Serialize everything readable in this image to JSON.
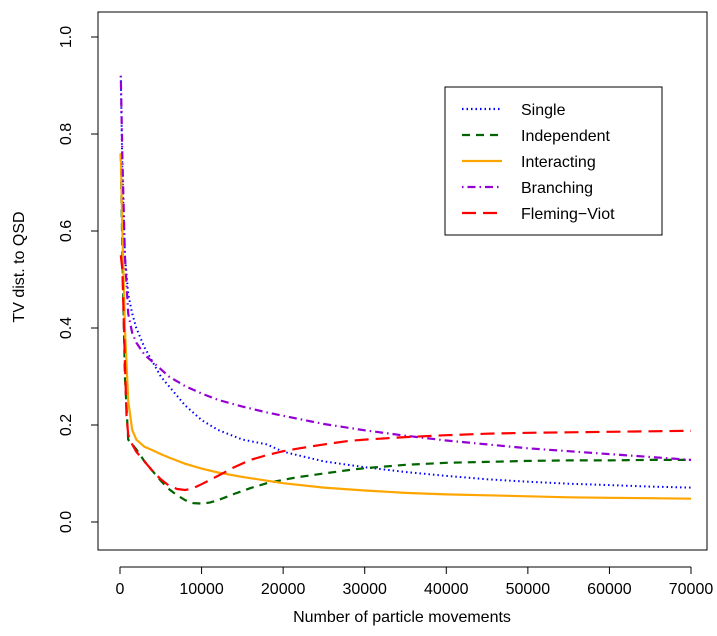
{
  "chart_data": {
    "type": "line",
    "title": "",
    "xlabel": "Number of particle movements",
    "ylabel": "TV dist. to QSD",
    "xlim": [
      0,
      70000
    ],
    "ylim": [
      0,
      1.0
    ],
    "grid": false,
    "legend_position": "top-right",
    "xticks": [
      0,
      10000,
      20000,
      30000,
      40000,
      50000,
      60000,
      70000
    ],
    "xtick_labels": [
      "0",
      "10000",
      "20000",
      "30000",
      "40000",
      "50000",
      "60000",
      "70000"
    ],
    "yticks": [
      0.0,
      0.2,
      0.4,
      0.6,
      0.8,
      1.0
    ],
    "ytick_labels": [
      "0.0",
      "0.2",
      "0.4",
      "0.6",
      "0.8",
      "1.0"
    ],
    "series": [
      {
        "name": "Single",
        "color": "#0000ff",
        "dash": "dotted",
        "x": [
          100,
          300,
          600,
          1000,
          1500,
          2000,
          3000,
          4000,
          5000,
          6000,
          7000,
          8000,
          10000,
          12000,
          15000,
          18000,
          20000,
          25000,
          30000,
          35000,
          40000,
          45000,
          50000,
          55000,
          60000,
          65000,
          70000
        ],
        "y": [
          0.92,
          0.72,
          0.55,
          0.47,
          0.43,
          0.4,
          0.36,
          0.33,
          0.3,
          0.28,
          0.26,
          0.24,
          0.21,
          0.19,
          0.17,
          0.16,
          0.145,
          0.125,
          0.113,
          0.103,
          0.095,
          0.088,
          0.083,
          0.079,
          0.076,
          0.073,
          0.071
        ]
      },
      {
        "name": "Independent",
        "color": "#006400",
        "dash": "dashed",
        "x": [
          100,
          300,
          600,
          1000,
          1500,
          2000,
          3000,
          4000,
          5000,
          6000,
          7000,
          8000,
          9000,
          10000,
          11000,
          12000,
          14000,
          16000,
          18000,
          20000,
          22000,
          25000,
          28000,
          30000,
          35000,
          40000,
          45000,
          50000,
          55000,
          60000,
          65000,
          70000
        ],
        "y": [
          0.76,
          0.55,
          0.3,
          0.17,
          0.16,
          0.15,
          0.125,
          0.105,
          0.085,
          0.068,
          0.055,
          0.045,
          0.039,
          0.038,
          0.04,
          0.045,
          0.058,
          0.07,
          0.08,
          0.087,
          0.093,
          0.1,
          0.107,
          0.111,
          0.118,
          0.122,
          0.124,
          0.126,
          0.127,
          0.127,
          0.128,
          0.128
        ]
      },
      {
        "name": "Interacting",
        "color": "#ffa500",
        "dash": "solid",
        "x": [
          100,
          300,
          600,
          1000,
          1500,
          2000,
          3000,
          4000,
          5000,
          6000,
          8000,
          10000,
          12000,
          15000,
          20000,
          25000,
          30000,
          35000,
          40000,
          45000,
          50000,
          55000,
          60000,
          65000,
          70000
        ],
        "y": [
          0.76,
          0.6,
          0.4,
          0.25,
          0.19,
          0.17,
          0.155,
          0.148,
          0.14,
          0.133,
          0.12,
          0.11,
          0.102,
          0.093,
          0.08,
          0.071,
          0.065,
          0.06,
          0.057,
          0.055,
          0.053,
          0.051,
          0.05,
          0.049,
          0.048
        ]
      },
      {
        "name": "Branching",
        "color": "#9400d3",
        "dash": "dotdash",
        "x": [
          100,
          300,
          600,
          1000,
          1500,
          2000,
          3000,
          4000,
          5000,
          6000,
          8000,
          10000,
          12000,
          15000,
          18000,
          20000,
          25000,
          30000,
          35000,
          40000,
          45000,
          50000,
          55000,
          60000,
          65000,
          70000
        ],
        "y": [
          0.92,
          0.75,
          0.55,
          0.43,
          0.39,
          0.37,
          0.345,
          0.33,
          0.315,
          0.3,
          0.28,
          0.265,
          0.252,
          0.238,
          0.226,
          0.219,
          0.202,
          0.189,
          0.178,
          0.168,
          0.16,
          0.152,
          0.146,
          0.14,
          0.134,
          0.128
        ]
      },
      {
        "name": "Fleming−Viot",
        "color": "#ff0000",
        "dash": "longdash",
        "x": [
          100,
          300,
          600,
          800,
          1000,
          1500,
          2000,
          3000,
          4000,
          5000,
          6000,
          7000,
          8000,
          9000,
          10000,
          12000,
          14000,
          16000,
          18000,
          20000,
          22000,
          25000,
          28000,
          30000,
          35000,
          40000,
          45000,
          50000,
          55000,
          60000,
          65000,
          70000
        ],
        "y": [
          0.55,
          0.52,
          0.33,
          0.22,
          0.18,
          0.16,
          0.145,
          0.125,
          0.105,
          0.088,
          0.075,
          0.068,
          0.066,
          0.07,
          0.078,
          0.095,
          0.113,
          0.128,
          0.138,
          0.146,
          0.152,
          0.16,
          0.167,
          0.17,
          0.175,
          0.179,
          0.182,
          0.184,
          0.185,
          0.186,
          0.187,
          0.188
        ]
      }
    ]
  }
}
